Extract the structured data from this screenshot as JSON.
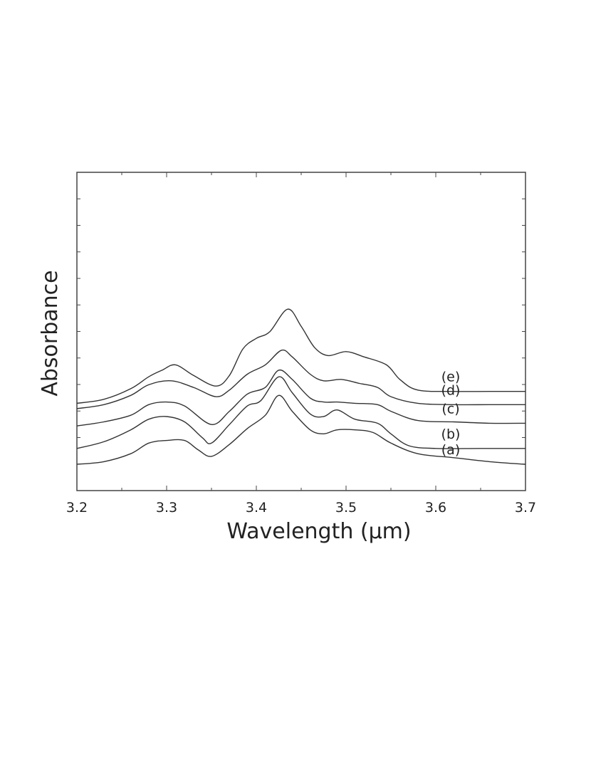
{
  "chart_data": {
    "type": "line",
    "xlabel": "Wavelength (μm)",
    "ylabel": "Absorbance",
    "xlim": [
      3.2,
      3.7
    ],
    "x_ticks": [
      "3.2",
      "3.3",
      "3.4",
      "3.5",
      "3.6",
      "3.7"
    ],
    "y_ticks_labeled": false,
    "grid": false,
    "legend": "none; each curve labeled at its right end",
    "units_note": "Absorbance in arbitrary units; curves offset vertically (offset counted in units of the minor y ticks from the bottom of the frame)",
    "series": [
      {
        "name": "(a)",
        "offset": 0.4,
        "x": [
          3.2,
          3.23,
          3.26,
          3.28,
          3.3,
          3.32,
          3.335,
          3.35,
          3.37,
          3.39,
          3.41,
          3.425,
          3.44,
          3.46,
          3.475,
          3.49,
          3.51,
          3.53,
          3.55,
          3.58,
          3.62,
          3.66,
          3.7
        ],
        "y": [
          0.0,
          0.1,
          0.4,
          0.8,
          0.9,
          0.9,
          0.55,
          0.3,
          0.75,
          1.35,
          1.85,
          2.6,
          2.0,
          1.3,
          1.15,
          1.3,
          1.3,
          1.2,
          0.8,
          0.4,
          0.25,
          0.1,
          0.0
        ]
      },
      {
        "name": "(b)",
        "offset": 1.0,
        "x": [
          3.2,
          3.23,
          3.26,
          3.28,
          3.3,
          3.32,
          3.34,
          3.35,
          3.37,
          3.39,
          3.405,
          3.425,
          3.44,
          3.46,
          3.475,
          3.49,
          3.51,
          3.535,
          3.55,
          3.57,
          3.6,
          3.65,
          3.7
        ],
        "y": [
          0.0,
          0.25,
          0.7,
          1.1,
          1.2,
          1.0,
          0.4,
          0.2,
          0.9,
          1.6,
          1.8,
          2.7,
          2.1,
          1.3,
          1.2,
          1.45,
          1.1,
          0.95,
          0.55,
          0.1,
          0.0,
          0.0,
          0.0
        ]
      },
      {
        "name": "(c)",
        "offset": 1.85,
        "x": [
          3.2,
          3.23,
          3.26,
          3.28,
          3.3,
          3.32,
          3.35,
          3.37,
          3.39,
          3.41,
          3.425,
          3.44,
          3.46,
          3.475,
          3.49,
          3.51,
          3.535,
          3.55,
          3.58,
          3.62,
          3.66,
          3.7
        ],
        "y": [
          0.0,
          0.15,
          0.4,
          0.8,
          0.9,
          0.75,
          0.05,
          0.55,
          1.2,
          1.45,
          2.1,
          1.75,
          1.05,
          0.9,
          0.9,
          0.85,
          0.8,
          0.55,
          0.2,
          0.15,
          0.1,
          0.1
        ]
      },
      {
        "name": "(d)",
        "offset": 2.5,
        "x": [
          3.2,
          3.23,
          3.26,
          3.28,
          3.305,
          3.33,
          3.355,
          3.37,
          3.39,
          3.41,
          3.428,
          3.44,
          3.46,
          3.475,
          3.495,
          3.515,
          3.535,
          3.55,
          3.58,
          3.62,
          3.66,
          3.7
        ],
        "y": [
          0.0,
          0.15,
          0.5,
          0.9,
          1.05,
          0.8,
          0.45,
          0.7,
          1.3,
          1.65,
          2.2,
          1.95,
          1.3,
          1.05,
          1.1,
          0.95,
          0.8,
          0.45,
          0.2,
          0.15,
          0.15,
          0.15
        ]
      },
      {
        "name": "(e)",
        "offset": 2.7,
        "x": [
          3.2,
          3.23,
          3.26,
          3.28,
          3.295,
          3.31,
          3.33,
          3.355,
          3.37,
          3.385,
          3.4,
          3.415,
          3.435,
          3.45,
          3.465,
          3.48,
          3.5,
          3.52,
          3.545,
          3.56,
          3.58,
          3.62,
          3.66,
          3.7
        ],
        "y": [
          0.0,
          0.15,
          0.55,
          1.0,
          1.25,
          1.45,
          1.05,
          0.65,
          1.05,
          2.05,
          2.45,
          2.7,
          3.55,
          2.9,
          2.1,
          1.8,
          1.95,
          1.75,
          1.45,
          0.9,
          0.5,
          0.45,
          0.45,
          0.45
        ]
      }
    ]
  }
}
